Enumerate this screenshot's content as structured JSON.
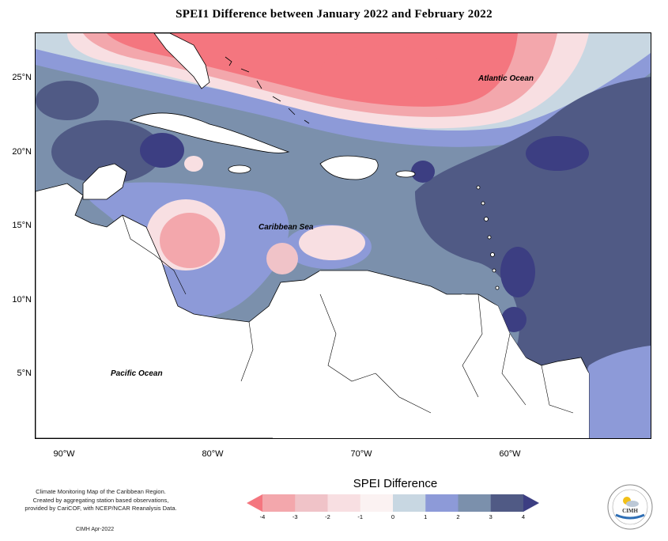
{
  "title": "SPEI1 Difference between January 2022 and February 2022",
  "map": {
    "latitude_labels": [
      "25°N",
      "20°N",
      "15°N",
      "10°N",
      "5°N"
    ],
    "longitude_labels": [
      "90°W",
      "80°W",
      "70°W",
      "60°W"
    ],
    "ocean_labels": {
      "atlantic": "Atlantic Ocean",
      "caribbean": "Caribbean Sea",
      "pacific": "Pacific Ocean"
    }
  },
  "legend": {
    "title": "SPEI Difference",
    "ticks": [
      "-4",
      "-3",
      "-2",
      "-1",
      "0",
      "1",
      "2",
      "3",
      "4"
    ],
    "colors": [
      "#f4767f",
      "#f3a7ac",
      "#f0c3c8",
      "#f8dfe2",
      "#fbf2f2",
      "#c8d7e2",
      "#8d9ad8",
      "#7b90ac",
      "#505a85",
      "#3c3e82"
    ]
  },
  "credit": {
    "line1": "Climate Monitoring Map of the Caribbean Region.",
    "line2": "Created by aggregating station based observations,",
    "line3": "provided by CariCOF, with NCEP/NCAR Reanalysis Data.",
    "date": "CIMH Apr-2022"
  },
  "logo": {
    "text": "CIMH",
    "icon": "sun-cloud-icon"
  }
}
